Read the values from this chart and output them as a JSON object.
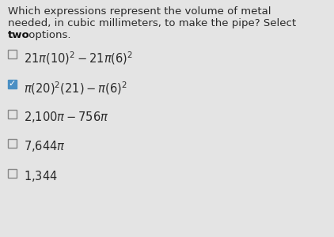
{
  "background_color": "#e4e4e4",
  "title_line1": "Which expressions represent the volume of metal",
  "title_line2": "needed, in cubic millimeters, to make the pipe? Select",
  "title_line3_bold": "two",
  "title_line3_normal": " options.",
  "options": [
    {
      "label_parts": [
        {
          "text": "21",
          "math": false
        },
        {
          "text": "$\\pi$",
          "math": true
        },
        {
          "text": "(10)",
          "math": false
        },
        {
          "text": "$^2$",
          "math": true
        },
        {
          "text": "– 21",
          "math": false
        },
        {
          "text": "$\\pi$",
          "math": true
        },
        {
          "text": "(6)",
          "math": false
        },
        {
          "text": "$^2$",
          "math": true
        }
      ],
      "label": "$21\\pi(10)^2-21\\pi(6)^2$",
      "checked": false
    },
    {
      "label": "$\\pi(20)^2(21)-\\pi(6)^2$",
      "checked": true
    },
    {
      "label": "$2{,}100\\pi-756\\pi$",
      "checked": false
    },
    {
      "label": "$7{,}644\\pi$",
      "checked": false
    },
    {
      "label": "$1{,}344$",
      "checked": false
    }
  ],
  "text_color": "#2a2a2a",
  "check_color": "#4a8fc4",
  "check_fill": "#4a8fc4",
  "title_fontsize": 9.5,
  "option_fontsize": 10.5,
  "bold_color": "#111111"
}
